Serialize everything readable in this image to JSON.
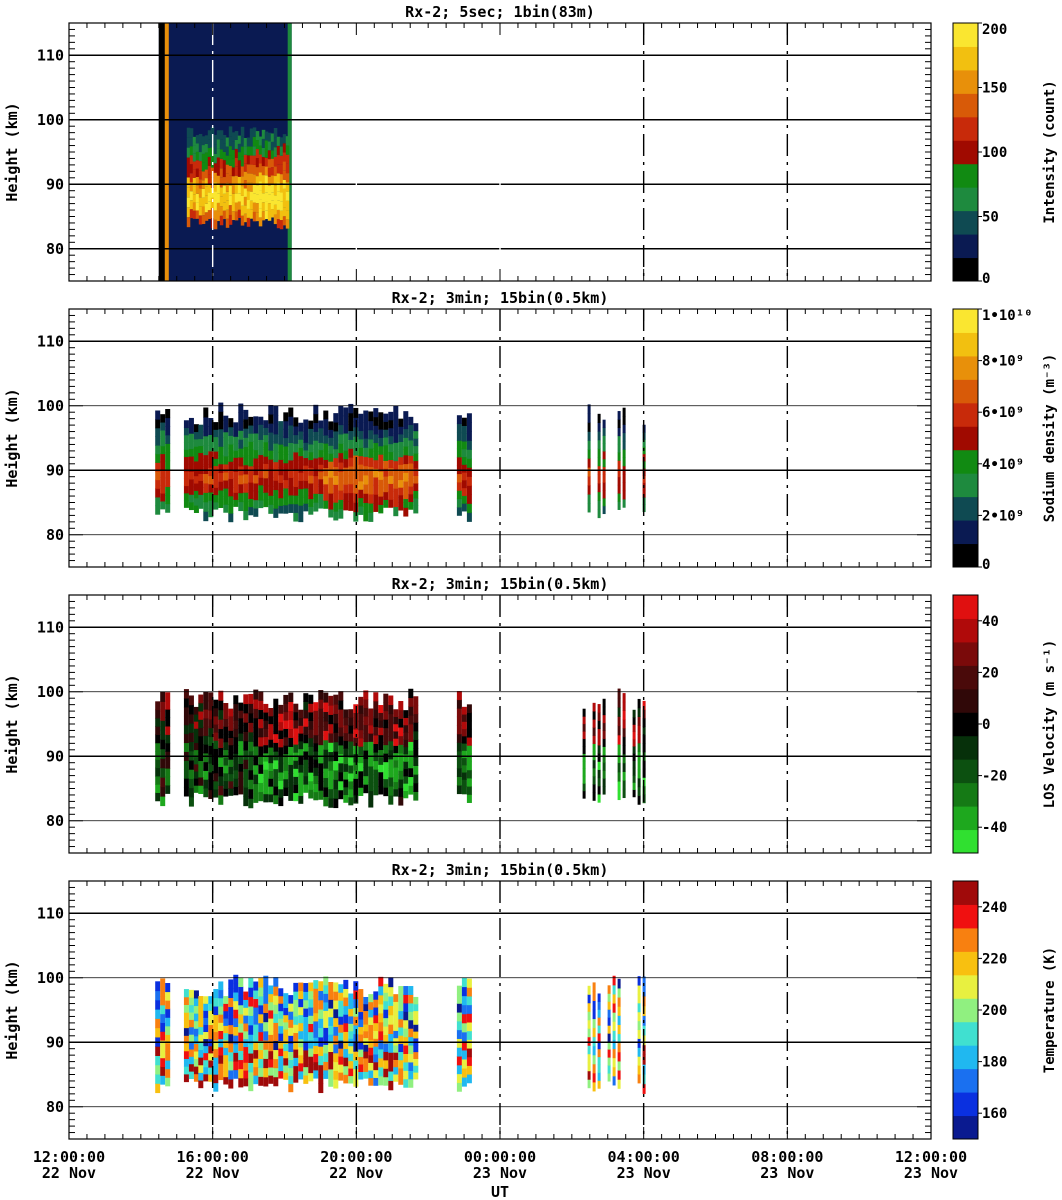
{
  "chart_data": [
    {
      "type": "heatmap",
      "title": "Rx-2;  5sec; 1bin(83m)",
      "ylabel": "Height (km)",
      "colorbar_label": "Intensity (count)",
      "ylim": [
        75,
        115
      ],
      "yticks": [
        "80",
        "90",
        "100",
        "110"
      ],
      "colorbar_ticks": [
        "0",
        "50",
        "100",
        "150",
        "200"
      ],
      "colorbar_range": [
        0,
        200
      ],
      "colorbar_colors": [
        "#000000",
        "#0a1a52",
        "#0f4a52",
        "#1e8a3e",
        "#118a12",
        "#a00a00",
        "#c82a0a",
        "#d85a08",
        "#e8900a",
        "#f2c010",
        "#fae630"
      ],
      "data_span_hours": [
        2.5,
        6.2
      ],
      "layer_km": [
        84,
        98
      ],
      "peak_km": 88
    },
    {
      "type": "heatmap",
      "title": "Rx-2; 3min; 15bin(0.5km)",
      "ylabel": "Height (km)",
      "colorbar_label": "Sodium density (m⁻³)",
      "ylim": [
        75,
        115
      ],
      "yticks": [
        "80",
        "90",
        "100",
        "110"
      ],
      "colorbar_ticks": [
        "0",
        "2•10⁹",
        "4•10⁹",
        "6•10⁹",
        "8•10⁹",
        "1•10¹⁰"
      ],
      "colorbar_range": [
        0,
        10000000000
      ],
      "colorbar_colors": [
        "#000000",
        "#0a1a52",
        "#0f4a52",
        "#1e8a3e",
        "#118a12",
        "#a00a00",
        "#c82a0a",
        "#d85a08",
        "#e8900a",
        "#f2c010",
        "#fae630"
      ]
    },
    {
      "type": "heatmap",
      "title": "Rx-2; 3min; 15bin(0.5km)",
      "ylabel": "Height (km)",
      "colorbar_label": "LOS Velocity (m s⁻¹)",
      "ylim": [
        75,
        115
      ],
      "yticks": [
        "80",
        "90",
        "100",
        "110"
      ],
      "colorbar_ticks": [
        "-40",
        "-20",
        "0",
        "20",
        "40"
      ],
      "colorbar_range": [
        -50,
        50
      ],
      "colorbar_colors": [
        "#30e030",
        "#1ea81e",
        "#157a15",
        "#0c5010",
        "#06300a",
        "#000000",
        "#300808",
        "#4a0a0a",
        "#7a0a0a",
        "#b00a0a",
        "#e01010"
      ]
    },
    {
      "type": "heatmap",
      "title": "Rx-2; 3min; 15bin(0.5km)",
      "ylabel": "Height (km)",
      "colorbar_label": "Temperature (K)",
      "ylim": [
        75,
        115
      ],
      "yticks": [
        "80",
        "90",
        "100",
        "110"
      ],
      "colorbar_ticks": [
        "160",
        "180",
        "200",
        "220",
        "240"
      ],
      "colorbar_range": [
        150,
        250
      ],
      "colorbar_colors": [
        "#0a1a90",
        "#0a30e0",
        "#1a70f0",
        "#20b8f0",
        "#40e0d0",
        "#90f080",
        "#e8f040",
        "#f8c010",
        "#f88010",
        "#f01010",
        "#a00a0a"
      ]
    }
  ],
  "x_axis": {
    "label": "UT",
    "range_hours": [
      0,
      24
    ],
    "ticks": [
      {
        "time": "12:00:00",
        "date": "22 Nov"
      },
      {
        "time": "16:00:00",
        "date": "22 Nov"
      },
      {
        "time": "20:00:00",
        "date": "22 Nov"
      },
      {
        "time": "00:00:00",
        "date": "23 Nov"
      },
      {
        "time": "04:00:00",
        "date": "23 Nov"
      },
      {
        "time": "08:00:00",
        "date": "23 Nov"
      },
      {
        "time": "12:00:00",
        "date": "23 Nov"
      }
    ]
  },
  "profile_segments_hours": [
    [
      2.4,
      2.7
    ],
    [
      3.2,
      3.6
    ],
    [
      3.6,
      9.6
    ],
    [
      10.8,
      11.1
    ],
    [
      14.3,
      16.0
    ]
  ]
}
